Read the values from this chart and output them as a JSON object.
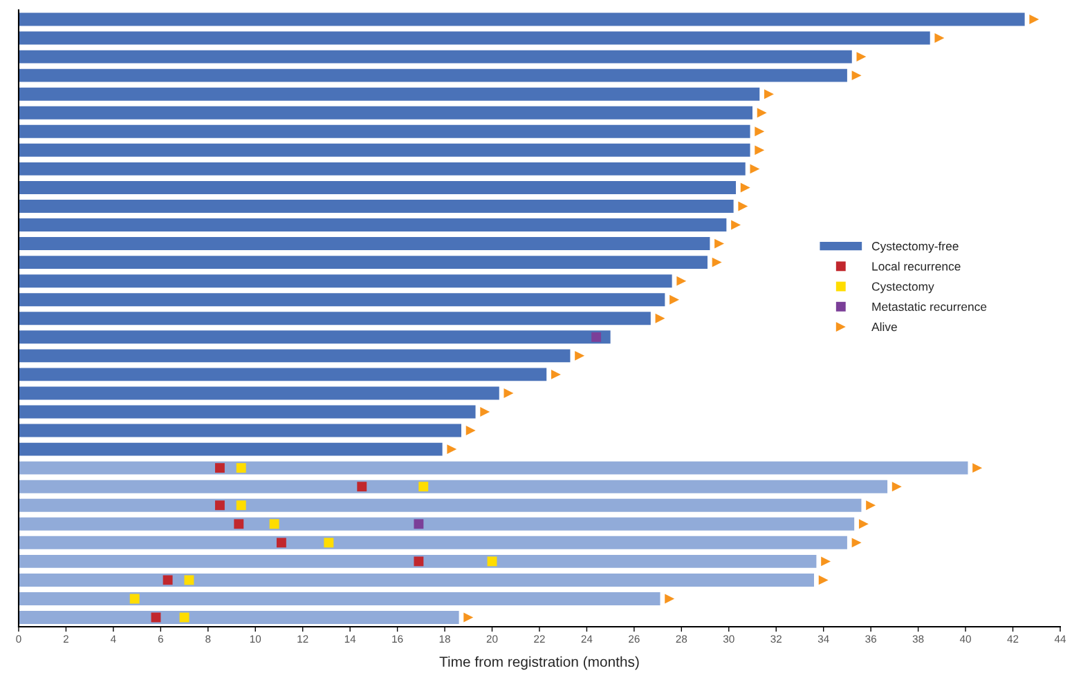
{
  "chart_data": {
    "type": "bar",
    "orientation": "horizontal",
    "xlabel": "Time from registration (months)",
    "categories": [
      null,
      null,
      null,
      null,
      null,
      null,
      null,
      null,
      null,
      null,
      null,
      null,
      null,
      null,
      null,
      null,
      null,
      null,
      null,
      null,
      null,
      null,
      null,
      null,
      null,
      null,
      null,
      null,
      null,
      null,
      null,
      null,
      null
    ],
    "xlim": [
      0,
      44
    ],
    "xticks": [
      0,
      2,
      4,
      6,
      8,
      10,
      12,
      14,
      16,
      18,
      20,
      22,
      24,
      26,
      28,
      30,
      32,
      34,
      36,
      38,
      40,
      42,
      44
    ],
    "grid": false,
    "legend": "right",
    "series": [
      {
        "name": "Cystectomy-free",
        "color": "#4a72b8",
        "colors": [
          "#4a72b8",
          "#4a72b8",
          "#4a72b8",
          "#4a72b8",
          "#4a72b8",
          "#4a72b8",
          "#4a72b8",
          "#4a72b8",
          "#4a72b8",
          "#4a72b8",
          "#4a72b8",
          "#4a72b8",
          "#4a72b8",
          "#4a72b8",
          "#4a72b8",
          "#4a72b8",
          "#4a72b8",
          "#4a72b8",
          "#4a72b8",
          "#4a72b8",
          "#4a72b8",
          "#4a72b8",
          "#4a72b8",
          "#4a72b8",
          "#91abd9",
          "#91abd9",
          "#91abd9",
          "#91abd9",
          "#91abd9",
          "#91abd9",
          "#91abd9",
          "#91abd9",
          "#91abd9"
        ],
        "values": [
          42.5,
          38.5,
          35.2,
          35.0,
          31.3,
          31.0,
          30.9,
          30.9,
          30.7,
          30.3,
          30.2,
          29.9,
          29.2,
          29.1,
          27.6,
          27.3,
          26.7,
          25.0,
          23.3,
          22.3,
          20.3,
          19.3,
          18.7,
          17.9,
          40.1,
          36.7,
          35.6,
          35.3,
          35.0,
          33.7,
          33.6,
          27.1,
          18.6
        ]
      },
      {
        "type": "scatter",
        "name": "Local recurrence",
        "color": "#c1272d",
        "marker": "square",
        "values": [
          null,
          null,
          null,
          null,
          null,
          null,
          null,
          null,
          null,
          null,
          null,
          null,
          null,
          null,
          null,
          null,
          null,
          null,
          null,
          null,
          null,
          null,
          null,
          null,
          8.5,
          14.5,
          8.5,
          9.3,
          11.1,
          16.9,
          6.3,
          null,
          5.8
        ]
      },
      {
        "type": "scatter",
        "name": "Cystectomy",
        "color": "#ffdd00",
        "marker": "square",
        "values": [
          null,
          null,
          null,
          null,
          null,
          null,
          null,
          null,
          null,
          null,
          null,
          null,
          null,
          null,
          null,
          null,
          null,
          null,
          null,
          null,
          null,
          null,
          null,
          null,
          9.4,
          17.1,
          9.4,
          10.8,
          13.1,
          20.0,
          7.2,
          4.9,
          7.0
        ]
      },
      {
        "type": "scatter",
        "name": "Metastatic recurrence",
        "color": "#7b3f98",
        "marker": "square",
        "values": [
          null,
          null,
          null,
          null,
          null,
          null,
          null,
          null,
          null,
          null,
          null,
          null,
          null,
          null,
          null,
          null,
          null,
          24.4,
          null,
          null,
          null,
          null,
          null,
          null,
          null,
          null,
          null,
          16.9,
          null,
          null,
          null,
          null,
          null
        ]
      },
      {
        "type": "scatter",
        "name": "Alive",
        "color": "#f7941d",
        "marker": "triangle",
        "values": [
          42.9,
          38.9,
          35.6,
          35.4,
          31.7,
          31.4,
          31.3,
          31.3,
          31.1,
          30.7,
          30.6,
          30.3,
          29.6,
          29.5,
          28.0,
          27.7,
          27.1,
          null,
          23.7,
          22.7,
          20.7,
          19.7,
          19.1,
          18.3,
          40.5,
          37.1,
          36.0,
          35.7,
          35.4,
          34.1,
          34.0,
          27.5,
          19.0
        ]
      }
    ]
  }
}
